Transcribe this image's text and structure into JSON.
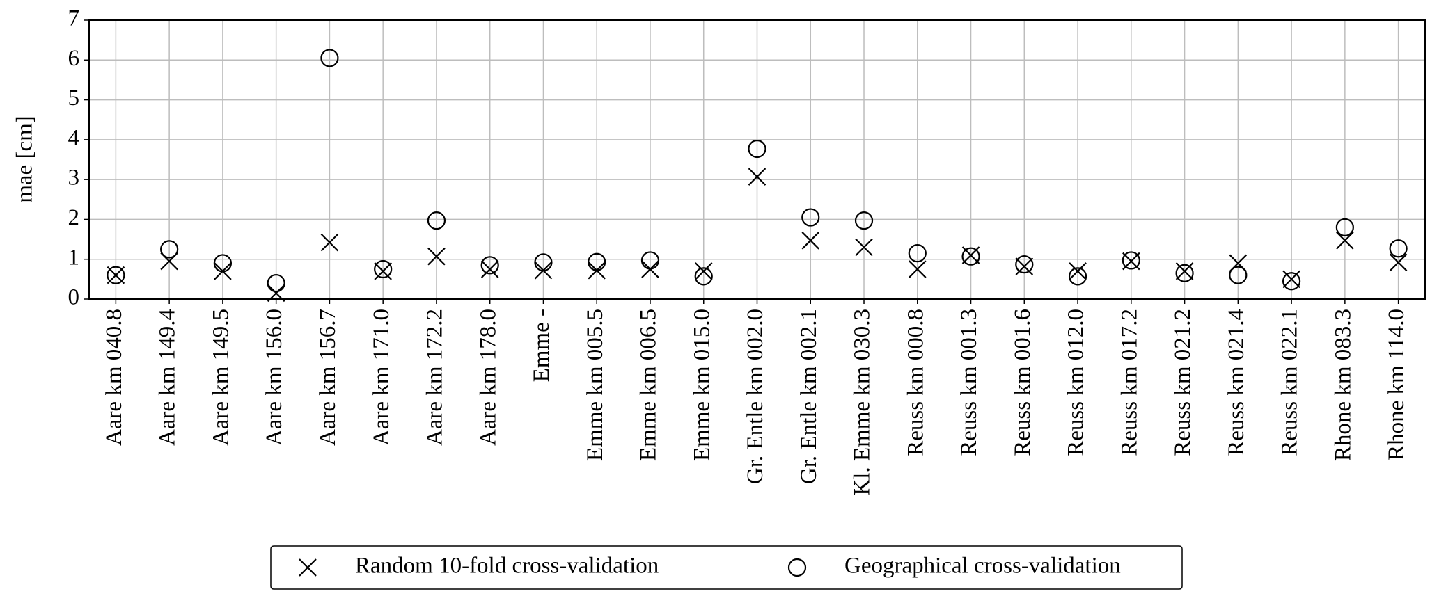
{
  "chart_data": {
    "type": "scatter",
    "ylabel": "mae [cm]",
    "categories": [
      "Aare km 040.8",
      "Aare km 149.4",
      "Aare km 149.5",
      "Aare km 156.0",
      "Aare km 156.7",
      "Aare km 171.0",
      "Aare km 172.2",
      "Aare km 178.0",
      "Emme -",
      "Emme km 005.5",
      "Emme km 006.5",
      "Emme km 015.0",
      "Gr. Entle km 002.0",
      "Gr. Entle km 002.1",
      "Kl. Emme km 030.3",
      "Reuss km 000.8",
      "Reuss km 001.3",
      "Reuss km 001.6",
      "Reuss km 012.0",
      "Reuss km 017.2",
      "Reuss km 021.2",
      "Reuss km 021.4",
      "Reuss km 022.1",
      "Rhone km 083.3",
      "Rhone km 114.0"
    ],
    "series": [
      {
        "name": "Random 10-fold cross-validation",
        "marker": "x",
        "color": "#000000",
        "values": [
          0.6,
          0.95,
          0.7,
          0.15,
          1.42,
          0.7,
          1.07,
          0.75,
          0.72,
          0.72,
          0.75,
          0.7,
          3.07,
          1.47,
          1.3,
          0.75,
          1.1,
          0.82,
          0.7,
          0.95,
          0.7,
          0.9,
          0.5,
          1.47,
          0.92
        ]
      },
      {
        "name": "Geographical cross-validation",
        "marker": "o",
        "color": "#000000",
        "values": [
          0.6,
          1.25,
          0.9,
          0.4,
          6.05,
          0.75,
          1.97,
          0.85,
          0.92,
          0.93,
          0.97,
          0.57,
          3.77,
          2.05,
          1.97,
          1.15,
          1.07,
          0.87,
          0.57,
          0.97,
          0.65,
          0.6,
          0.45,
          1.8,
          1.27
        ]
      }
    ],
    "ylim": [
      0,
      7
    ],
    "yticks": [
      0,
      1,
      2,
      3,
      4,
      5,
      6,
      7
    ],
    "grid": true,
    "legend": "bottom"
  }
}
